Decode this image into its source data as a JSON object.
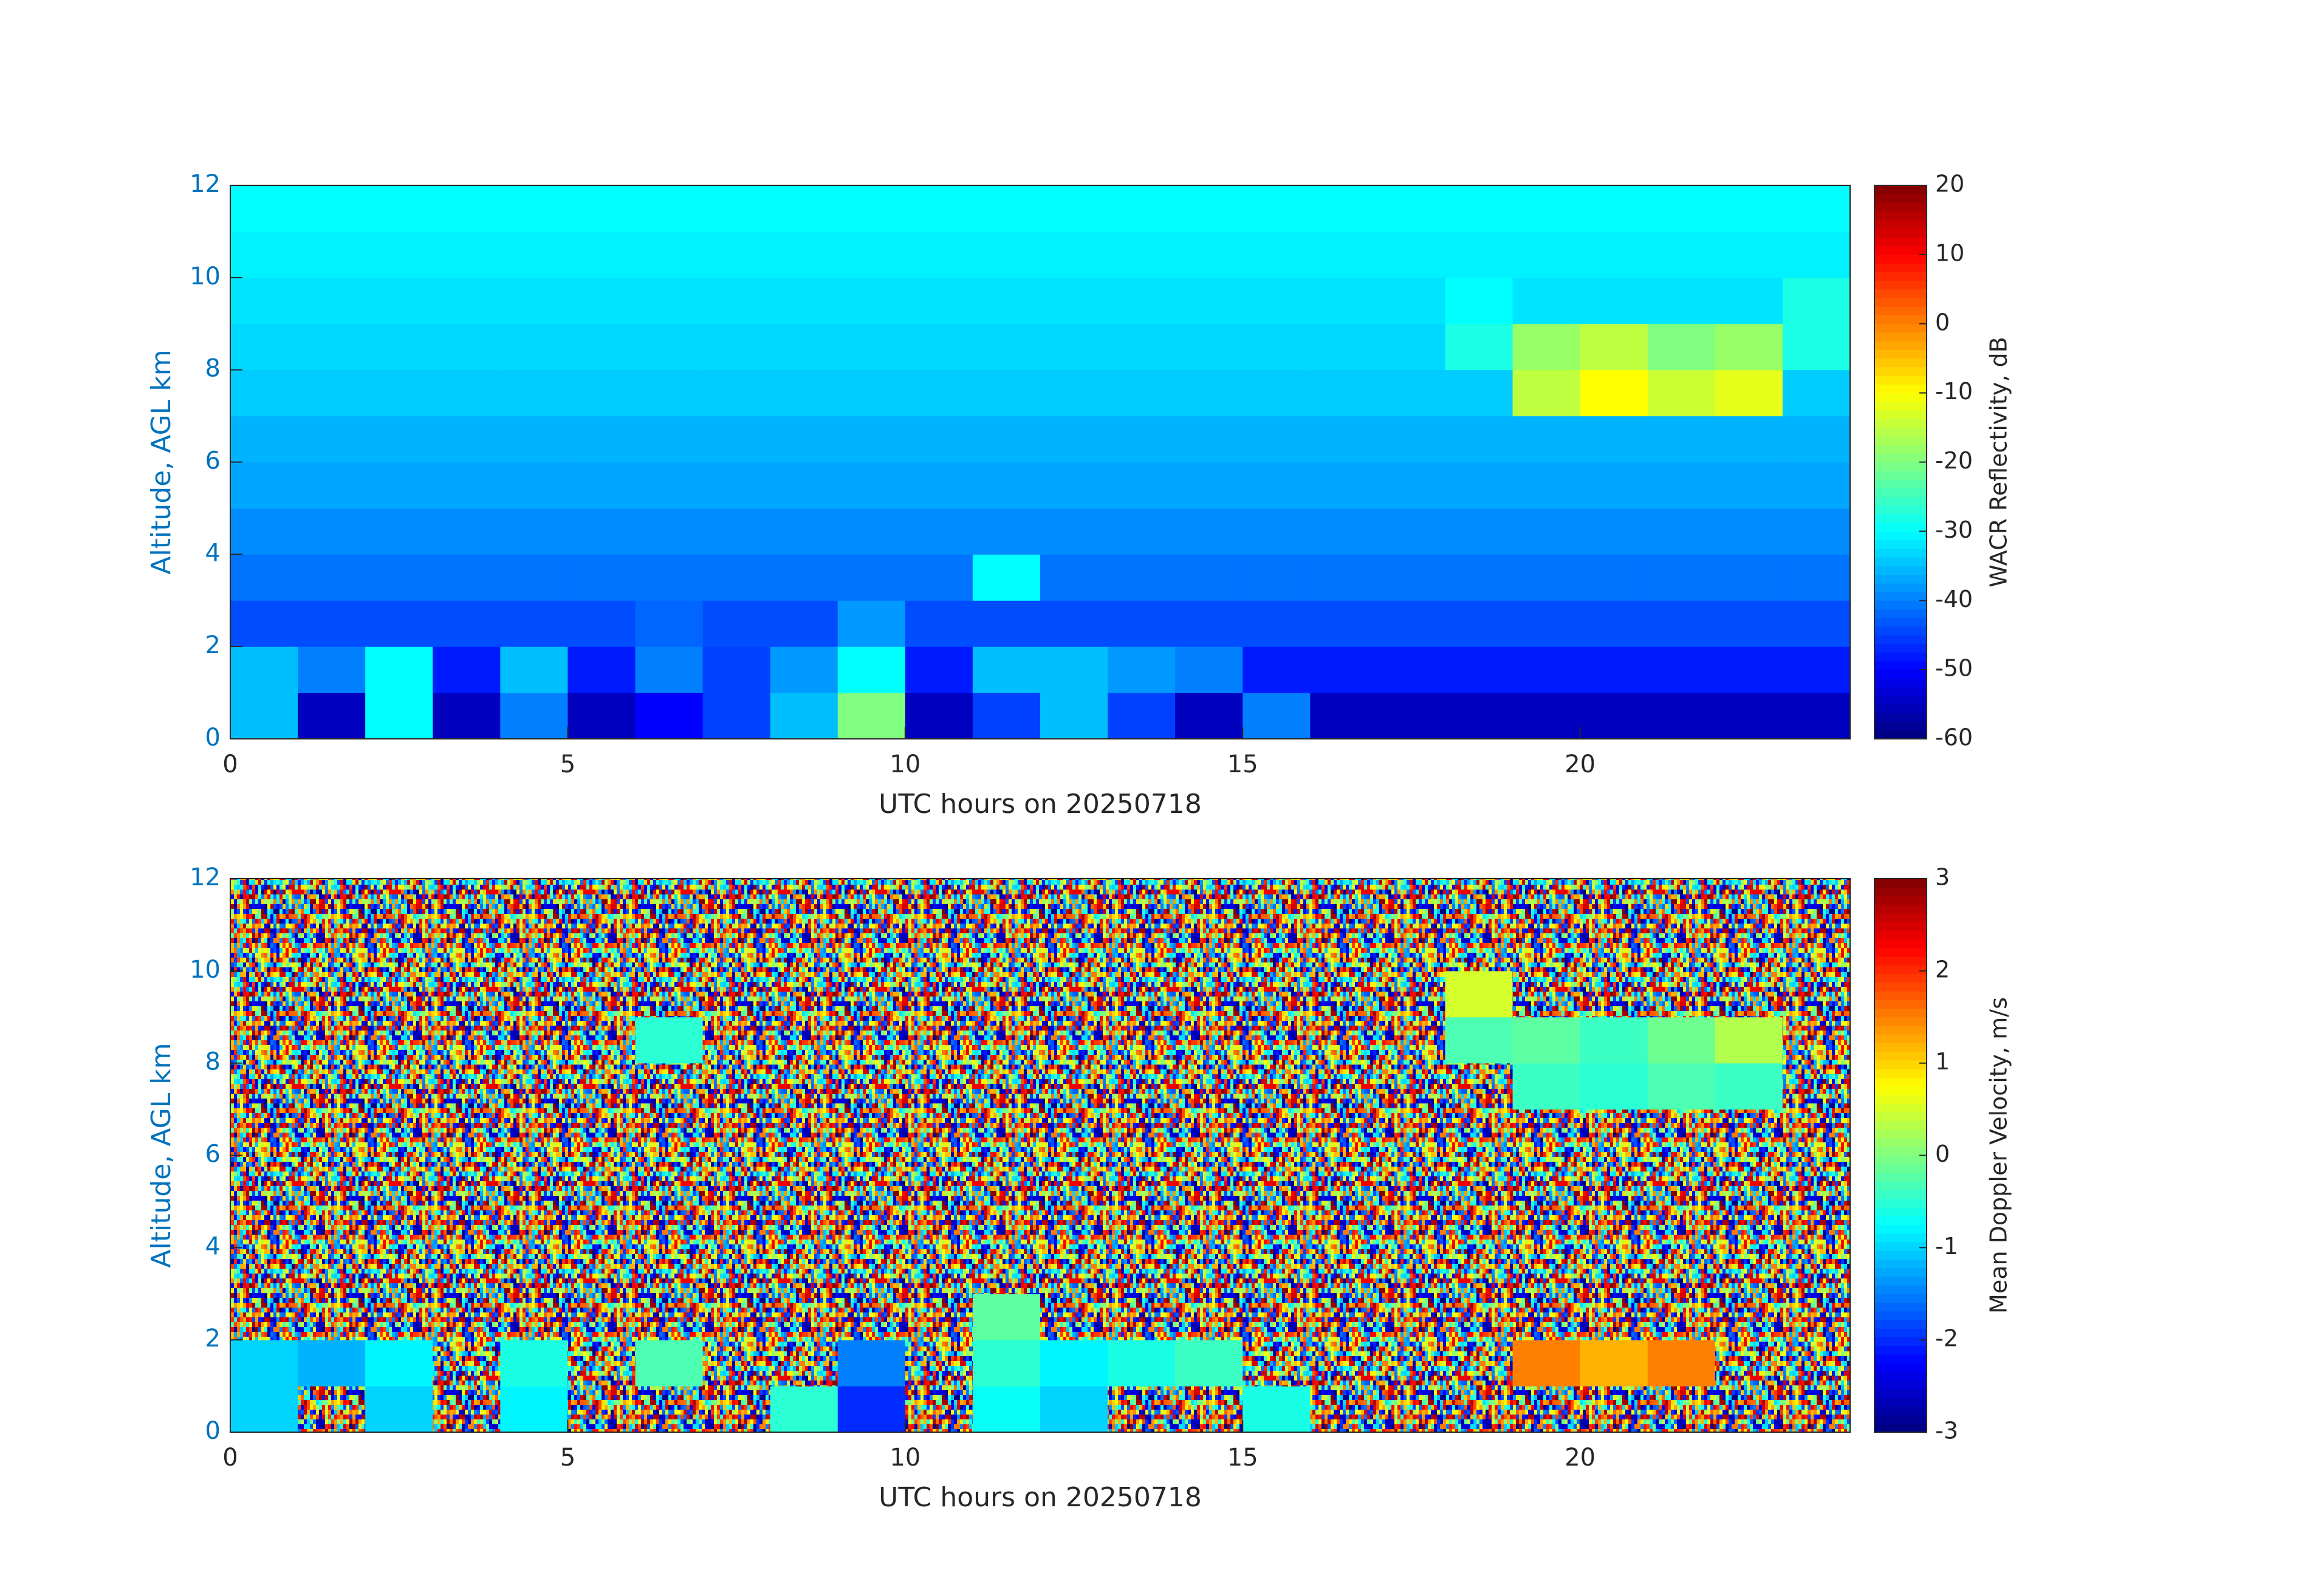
{
  "chart_data": [
    {
      "type": "heatmap",
      "xlabel": "UTC hours on 20250718",
      "ylabel": "Altitude, AGL km",
      "colorbar_label": "WACR Reflectivity, dB",
      "colormap": "jet",
      "xlim": [
        0,
        24
      ],
      "xticks": [
        0,
        5,
        10,
        15,
        20
      ],
      "ylim": [
        0,
        12
      ],
      "yticks": [
        0,
        2,
        4,
        6,
        8,
        10,
        12
      ],
      "zlim": [
        -60,
        20
      ],
      "zticks": [
        -60,
        -50,
        -40,
        -30,
        -20,
        -10,
        0,
        10,
        20
      ],
      "xbins": [
        0,
        1,
        2,
        3,
        4,
        5,
        6,
        7,
        8,
        9,
        10,
        11,
        12,
        13,
        14,
        15,
        16,
        17,
        18,
        19,
        20,
        21,
        22,
        23,
        24
      ],
      "ybins": [
        0,
        1,
        2,
        3,
        4,
        5,
        6,
        7,
        8,
        9,
        10,
        11,
        12
      ],
      "values": [
        [
          -35,
          -55,
          -30,
          -55,
          -40,
          -55,
          -50,
          -45,
          -35,
          -20,
          -55,
          -45,
          -35,
          -45,
          -55,
          -40,
          -55,
          -55,
          -55,
          -55,
          -55,
          -55,
          -55,
          -55
        ],
        [
          -35,
          -40,
          -30,
          -48,
          -35,
          -48,
          -40,
          -45,
          -38,
          -30,
          -48,
          -35,
          -35,
          -38,
          -40,
          -48,
          -48,
          -48,
          -48,
          -48,
          -48,
          -48,
          -48,
          -48
        ],
        [
          -44,
          -44,
          -44,
          -44,
          -44,
          -44,
          -42,
          -44,
          -44,
          -38,
          -44,
          -44,
          -44,
          -44,
          -44,
          -44,
          -44,
          -44,
          -44,
          -44,
          -44,
          -44,
          -44,
          -44
        ],
        [
          -41,
          -41,
          -41,
          -41,
          -41,
          -41,
          -41,
          -41,
          -41,
          -41,
          -41,
          -30,
          -41,
          -41,
          -41,
          -41,
          -41,
          -41,
          -41,
          -41,
          -41,
          -41,
          -41,
          -41
        ],
        [
          -39,
          -39,
          -39,
          -39,
          -39,
          -39,
          -39,
          -39,
          -39,
          -39,
          -39,
          -39,
          -39,
          -39,
          -39,
          -39,
          -39,
          -39,
          -39,
          -39,
          -39,
          -39,
          -39,
          -39
        ],
        [
          -37,
          -37,
          -37,
          -37,
          -37,
          -37,
          -37,
          -37,
          -37,
          -37,
          -37,
          -37,
          -37,
          -37,
          -37,
          -37,
          -37,
          -37,
          -37,
          -37,
          -37,
          -37,
          -37,
          -37
        ],
        [
          -36,
          -36,
          -36,
          -36,
          -36,
          -36,
          -36,
          -36,
          -36,
          -36,
          -36,
          -36,
          -36,
          -36,
          -36,
          -36,
          -36,
          -36,
          -36,
          -36,
          -36,
          -36,
          -36,
          -36
        ],
        [
          -34,
          -34,
          -34,
          -34,
          -34,
          -34,
          -34,
          -34,
          -34,
          -34,
          -34,
          -34,
          -34,
          -34,
          -34,
          -34,
          -34,
          -34,
          -34,
          -15,
          -10,
          -14,
          -12,
          -34
        ],
        [
          -33,
          -33,
          -33,
          -33,
          -33,
          -33,
          -33,
          -33,
          -33,
          -33,
          -33,
          -33,
          -33,
          -33,
          -33,
          -33,
          -33,
          -33,
          -28,
          -18,
          -15,
          -20,
          -18,
          -28
        ],
        [
          -32,
          -32,
          -32,
          -32,
          -32,
          -32,
          -32,
          -32,
          -32,
          -32,
          -32,
          -32,
          -32,
          -32,
          -32,
          -32,
          -32,
          -32,
          -30,
          -32,
          -32,
          -32,
          -32,
          -28
        ],
        [
          -31,
          -31,
          -31,
          -31,
          -31,
          -31,
          -31,
          -31,
          -31,
          -31,
          -31,
          -31,
          -31,
          -31,
          -31,
          -31,
          -31,
          -31,
          -31,
          -31,
          -31,
          -31,
          -31,
          -31
        ],
        [
          -30,
          -30,
          -30,
          -30,
          -30,
          -30,
          -30,
          -30,
          -30,
          -30,
          -30,
          -30,
          -30,
          -30,
          -30,
          -30,
          -30,
          -30,
          -30,
          -30,
          -30,
          -30,
          -30,
          -30
        ]
      ]
    },
    {
      "type": "heatmap",
      "xlabel": "UTC hours on 20250718",
      "ylabel": "Altitude, AGL km",
      "colorbar_label": "Mean Doppler Velocity, m/s",
      "colormap": "jet",
      "xlim": [
        0,
        24
      ],
      "xticks": [
        0,
        5,
        10,
        15,
        20
      ],
      "ylim": [
        0,
        12
      ],
      "yticks": [
        0,
        2,
        4,
        6,
        8,
        10,
        12
      ],
      "zlim": [
        -3,
        3
      ],
      "zticks": [
        -3,
        -2,
        -1,
        0,
        1,
        2,
        3
      ],
      "xbins": [
        0,
        1,
        2,
        3,
        4,
        5,
        6,
        7,
        8,
        9,
        10,
        11,
        12,
        13,
        14,
        15,
        16,
        17,
        18,
        19,
        20,
        21,
        22,
        23,
        24
      ],
      "ybins": [
        0,
        1,
        2,
        3,
        4,
        5,
        6,
        7,
        8,
        9,
        10,
        11,
        12
      ],
      "values": [
        [
          -1,
          null,
          -1,
          null,
          -0.8,
          null,
          null,
          null,
          -0.5,
          -2,
          null,
          -0.7,
          -1,
          null,
          null,
          -0.6,
          null,
          null,
          null,
          null,
          null,
          null,
          null,
          null
        ],
        [
          -1,
          -1.2,
          -0.8,
          null,
          -0.6,
          null,
          -0.3,
          null,
          null,
          -1.5,
          null,
          -0.5,
          -0.8,
          -0.6,
          -0.4,
          null,
          null,
          null,
          null,
          1.5,
          1.2,
          1.5,
          null,
          null
        ],
        [
          null,
          null,
          null,
          null,
          null,
          null,
          null,
          null,
          null,
          null,
          null,
          -0.2,
          null,
          null,
          null,
          null,
          null,
          null,
          null,
          null,
          null,
          null,
          null,
          null
        ],
        [
          null,
          null,
          null,
          null,
          null,
          null,
          null,
          null,
          null,
          null,
          null,
          null,
          null,
          null,
          null,
          null,
          null,
          null,
          null,
          null,
          null,
          null,
          null,
          null
        ],
        [
          null,
          null,
          null,
          null,
          null,
          null,
          null,
          null,
          null,
          null,
          null,
          null,
          null,
          null,
          null,
          null,
          null,
          null,
          null,
          null,
          null,
          null,
          null,
          null
        ],
        [
          null,
          null,
          null,
          null,
          null,
          null,
          null,
          null,
          null,
          null,
          null,
          null,
          null,
          null,
          null,
          null,
          null,
          null,
          null,
          null,
          null,
          null,
          null,
          null
        ],
        [
          null,
          null,
          null,
          null,
          null,
          null,
          null,
          null,
          null,
          null,
          null,
          null,
          null,
          null,
          null,
          null,
          null,
          null,
          null,
          null,
          null,
          null,
          null,
          null
        ],
        [
          null,
          null,
          null,
          null,
          null,
          null,
          null,
          null,
          null,
          null,
          null,
          null,
          null,
          null,
          null,
          null,
          null,
          null,
          null,
          -0.4,
          -0.5,
          -0.3,
          -0.4,
          null
        ],
        [
          null,
          null,
          null,
          null,
          null,
          null,
          -0.5,
          null,
          null,
          null,
          null,
          null,
          null,
          null,
          null,
          null,
          null,
          null,
          -0.3,
          -0.2,
          -0.4,
          -0.1,
          0.3,
          null
        ],
        [
          null,
          null,
          null,
          null,
          null,
          null,
          null,
          null,
          null,
          null,
          null,
          null,
          null,
          null,
          null,
          null,
          null,
          null,
          0.5,
          null,
          null,
          null,
          null,
          null
        ],
        [
          null,
          null,
          null,
          null,
          null,
          null,
          null,
          null,
          null,
          null,
          null,
          null,
          null,
          null,
          null,
          null,
          null,
          null,
          null,
          null,
          null,
          null,
          null,
          null
        ],
        [
          null,
          null,
          null,
          null,
          null,
          null,
          null,
          null,
          null,
          null,
          null,
          null,
          null,
          null,
          null,
          null,
          null,
          null,
          null,
          null,
          null,
          null,
          null,
          null
        ]
      ]
    }
  ]
}
